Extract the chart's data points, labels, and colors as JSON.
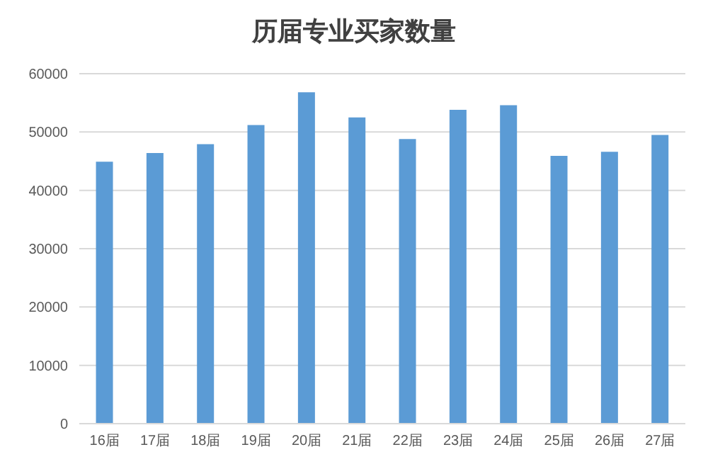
{
  "chart_data": {
    "type": "bar",
    "title": "历届专业买家数量",
    "categories": [
      "16届",
      "17届",
      "18届",
      "19届",
      "20届",
      "21届",
      "22届",
      "23届",
      "24届",
      "25届",
      "26届",
      "27届"
    ],
    "values": [
      44900,
      46400,
      47900,
      51200,
      56800,
      52500,
      48800,
      53800,
      54600,
      45900,
      46600,
      49500
    ],
    "color": "#5b9bd5",
    "ylim": [
      0,
      60000
    ],
    "yticks": [
      0,
      10000,
      20000,
      30000,
      40000,
      50000,
      60000
    ],
    "grid": "y"
  }
}
